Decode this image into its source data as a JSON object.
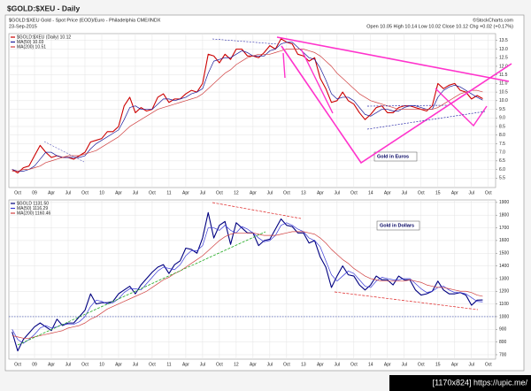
{
  "page_title": "$GOLD:$XEU - Daily",
  "header": {
    "symbol_line": "$GOLD:$XEU Gold - Spot Price (EOD)/Euro - Philadelphia CME/INDX",
    "source": "©StockCharts.com",
    "date": "23-Sep-2015",
    "quote": "Open 10.05 High 10.14 Low 10.02 Close 10.12 Chg +0.02 (+0.17%)"
  },
  "watermark": "[1170x824] https://upic.me/",
  "chart_data": [
    {
      "type": "line",
      "annotation": "Gold in Euros",
      "grid": true,
      "categories": [
        null,
        "Oct",
        null,
        null,
        "09",
        null,
        null,
        "Apr",
        null,
        null,
        "Jul",
        null,
        null,
        "Oct",
        null,
        null,
        "10",
        null,
        null,
        "Apr",
        null,
        null,
        "Jul",
        null,
        null,
        "Oct",
        null,
        null,
        "11",
        null,
        null,
        "Apr",
        null,
        null,
        "Jul",
        null,
        null,
        "Oct",
        null,
        null,
        "12",
        null,
        null,
        "Apr",
        null,
        null,
        "Jul",
        null,
        null,
        "Oct",
        null,
        null,
        "13",
        null,
        null,
        "Apr",
        null,
        null,
        "Jul",
        null,
        null,
        "Oct",
        null,
        null,
        "14",
        null,
        null,
        "Apr",
        null,
        null,
        "Jul",
        null,
        null,
        "Oct",
        null,
        null,
        "15",
        null,
        null,
        "Apr",
        null,
        null,
        "Jul",
        null,
        null,
        "Oct"
      ],
      "ylim": [
        4.95,
        13.9
      ],
      "yticks": [
        5.5,
        {
          "value": 6,
          "label": "6.0"
        },
        6.5,
        {
          "value": 7,
          "label": "7.0"
        },
        7.5,
        {
          "value": 8,
          "label": "8.0"
        },
        8.5,
        {
          "value": 9,
          "label": "9.0"
        },
        9.5,
        {
          "value": 10,
          "label": "10.0"
        },
        10.5,
        {
          "value": 11,
          "label": "11.0"
        },
        11.5,
        {
          "value": 12,
          "label": "12.0"
        },
        12.5,
        {
          "value": 13,
          "label": "13.0"
        },
        13.5
      ],
      "series": [
        {
          "name": "$GOLD:$XEU (Daily) 10.12",
          "color": "#cc0000",
          "width": 1.1,
          "values": [
            6.0,
            5.8,
            6.1,
            6.2,
            6.8,
            7.4,
            7.0,
            6.7,
            6.8,
            6.7,
            6.7,
            6.6,
            6.8,
            7.0,
            7.6,
            7.7,
            7.8,
            8.2,
            8.2,
            8.5,
            9.7,
            10.2,
            9.3,
            9.6,
            9.4,
            9.5,
            10.2,
            10.4,
            9.9,
            10.1,
            10.1,
            10.4,
            10.6,
            10.5,
            11.0,
            12.7,
            12.6,
            12.2,
            12.7,
            12.4,
            13.0,
            13.0,
            12.6,
            12.6,
            12.5,
            12.8,
            13.2,
            13.0,
            13.6,
            13.4,
            13.3,
            12.7,
            12.6,
            12.3,
            12.5,
            11.3,
            10.7,
            9.9,
            10.0,
            10.5,
            10.0,
            9.8,
            9.3,
            8.9,
            9.2,
            9.6,
            9.7,
            9.3,
            9.3,
            9.6,
            9.7,
            9.7,
            9.6,
            9.5,
            9.4,
            9.7,
            11.0,
            10.7,
            10.9,
            11.0,
            10.6,
            10.5,
            10.1,
            10.3,
            10.12,
            null
          ]
        },
        {
          "name": "MA(50) 10.03",
          "color": "#1a1a99",
          "width": 0.7,
          "values": [
            6.0,
            5.9,
            5.9,
            6.0,
            6.2,
            6.6,
            7.0,
            7.0,
            6.8,
            6.7,
            6.7,
            6.7,
            6.7,
            6.8,
            7.2,
            7.5,
            7.7,
            7.9,
            8.1,
            8.3,
            8.9,
            9.6,
            9.7,
            9.5,
            9.5,
            9.5,
            9.8,
            10.1,
            10.1,
            10.0,
            10.1,
            10.2,
            10.4,
            10.5,
            10.7,
            11.6,
            12.3,
            12.4,
            12.5,
            12.5,
            12.7,
            12.9,
            12.8,
            12.6,
            12.6,
            12.6,
            12.9,
            13.0,
            13.3,
            13.4,
            13.4,
            13.1,
            12.8,
            12.5,
            12.4,
            11.9,
            11.2,
            10.4,
            10.1,
            10.2,
            10.2,
            10.0,
            9.6,
            9.2,
            9.1,
            9.3,
            9.5,
            9.5,
            9.4,
            9.4,
            9.6,
            9.7,
            9.7,
            9.6,
            9.5,
            9.5,
            10.2,
            10.6,
            10.8,
            10.9,
            10.8,
            10.6,
            10.4,
            10.2,
            10.03,
            null
          ]
        },
        {
          "name": "MA(200) 10.51",
          "color": "#d04040",
          "width": 0.7,
          "values": [
            5.9,
            5.9,
            6.0,
            6.0,
            6.1,
            6.2,
            6.4,
            6.5,
            6.6,
            6.7,
            6.8,
            6.8,
            6.8,
            6.9,
            7.0,
            7.1,
            7.3,
            7.5,
            7.7,
            7.9,
            8.2,
            8.5,
            8.7,
            8.9,
            9.1,
            9.3,
            9.5,
            9.6,
            9.7,
            9.8,
            9.9,
            10.0,
            10.1,
            10.2,
            10.4,
            10.7,
            11.0,
            11.3,
            11.6,
            11.8,
            12.1,
            12.3,
            12.5,
            12.6,
            12.7,
            12.7,
            12.7,
            12.8,
            12.9,
            13.0,
            13.0,
            13.0,
            13.0,
            12.9,
            12.8,
            12.6,
            12.3,
            12.0,
            11.6,
            11.3,
            11.0,
            10.7,
            10.4,
            10.2,
            10.0,
            9.9,
            9.8,
            9.7,
            9.6,
            9.5,
            9.5,
            9.5,
            9.5,
            9.5,
            9.5,
            9.5,
            9.6,
            9.8,
            10.0,
            10.2,
            10.4,
            10.5,
            10.6,
            10.6,
            10.51,
            null
          ]
        }
      ]
    },
    {
      "type": "line",
      "annotation": "Gold in Dollars",
      "grid": true,
      "reference_line": 1000,
      "categories": [
        null,
        "Oct",
        null,
        null,
        "09",
        null,
        null,
        "Apr",
        null,
        null,
        "Jul",
        null,
        null,
        "Oct",
        null,
        null,
        "10",
        null,
        null,
        "Apr",
        null,
        null,
        "Jul",
        null,
        null,
        "Oct",
        null,
        null,
        "11",
        null,
        null,
        "Apr",
        null,
        null,
        "Jul",
        null,
        null,
        "Oct",
        null,
        null,
        "12",
        null,
        null,
        "Apr",
        null,
        null,
        "Jul",
        null,
        null,
        "Oct",
        null,
        null,
        "13",
        null,
        null,
        "Apr",
        null,
        null,
        "Jul",
        null,
        null,
        "Oct",
        null,
        null,
        "14",
        null,
        null,
        "Apr",
        null,
        null,
        "Jul",
        null,
        null,
        "Oct",
        null,
        null,
        "15",
        null,
        null,
        "Apr",
        null,
        null,
        "Jul",
        null,
        null,
        "Oct"
      ],
      "ylim": [
        665,
        1920
      ],
      "yticks": [
        700,
        800,
        900,
        1000,
        1100,
        1200,
        1300,
        1400,
        1500,
        1600,
        1700,
        1800,
        1900
      ],
      "series": [
        {
          "name": "$GOLD 1131.50",
          "color": "#000080",
          "width": 1.1,
          "values": [
            880,
            730,
            820,
            870,
            920,
            950,
            920,
            890,
            980,
            930,
            950,
            950,
            1000,
            1050,
            1180,
            1100,
            1110,
            1110,
            1120,
            1180,
            1210,
            1240,
            1180,
            1250,
            1300,
            1350,
            1390,
            1410,
            1340,
            1410,
            1440,
            1540,
            1530,
            1500,
            1620,
            1820,
            1620,
            1720,
            1750,
            1570,
            1740,
            1700,
            1660,
            1660,
            1560,
            1600,
            1610,
            1690,
            1770,
            1720,
            1710,
            1660,
            1660,
            1580,
            1600,
            1470,
            1390,
            1230,
            1320,
            1400,
            1330,
            1320,
            1250,
            1210,
            1250,
            1320,
            1290,
            1290,
            1250,
            1320,
            1290,
            1290,
            1210,
            1170,
            1180,
            1200,
            1280,
            1210,
            1180,
            1180,
            1190,
            1170,
            1090,
            1130,
            1131.5,
            null
          ]
        },
        {
          "name": "MA(50) 1116.29",
          "color": "#3b3bd6",
          "width": 0.7,
          "values": [
            900,
            820,
            790,
            820,
            860,
            910,
            930,
            910,
            920,
            940,
            940,
            940,
            960,
            1000,
            1080,
            1130,
            1120,
            1100,
            1110,
            1140,
            1190,
            1220,
            1220,
            1210,
            1260,
            1310,
            1360,
            1390,
            1380,
            1370,
            1410,
            1480,
            1520,
            1520,
            1560,
            1700,
            1700,
            1680,
            1720,
            1680,
            1660,
            1710,
            1690,
            1660,
            1620,
            1590,
            1600,
            1640,
            1720,
            1740,
            1720,
            1690,
            1670,
            1620,
            1600,
            1550,
            1440,
            1330,
            1280,
            1320,
            1360,
            1340,
            1290,
            1240,
            1230,
            1280,
            1310,
            1300,
            1290,
            1290,
            1300,
            1300,
            1260,
            1220,
            1190,
            1200,
            1230,
            1240,
            1210,
            1190,
            1190,
            1180,
            1150,
            1120,
            1116.29,
            null
          ]
        },
        {
          "name": "MA(200) 1160.46",
          "color": "#d04040",
          "width": 0.7,
          "values": [
            850,
            840,
            830,
            830,
            840,
            850,
            860,
            870,
            880,
            890,
            910,
            920,
            930,
            950,
            980,
            1000,
            1030,
            1060,
            1080,
            1100,
            1120,
            1140,
            1160,
            1180,
            1200,
            1230,
            1260,
            1290,
            1310,
            1340,
            1360,
            1390,
            1420,
            1450,
            1480,
            1520,
            1560,
            1600,
            1630,
            1650,
            1660,
            1660,
            1660,
            1660,
            1650,
            1640,
            1640,
            1640,
            1650,
            1660,
            1670,
            1670,
            1670,
            1660,
            1650,
            1620,
            1580,
            1530,
            1490,
            1450,
            1420,
            1380,
            1350,
            1320,
            1300,
            1290,
            1280,
            1280,
            1280,
            1280,
            1280,
            1290,
            1280,
            1270,
            1250,
            1240,
            1230,
            1230,
            1220,
            1210,
            1200,
            1200,
            1190,
            1170,
            1160.46,
            null
          ]
        }
      ]
    }
  ]
}
